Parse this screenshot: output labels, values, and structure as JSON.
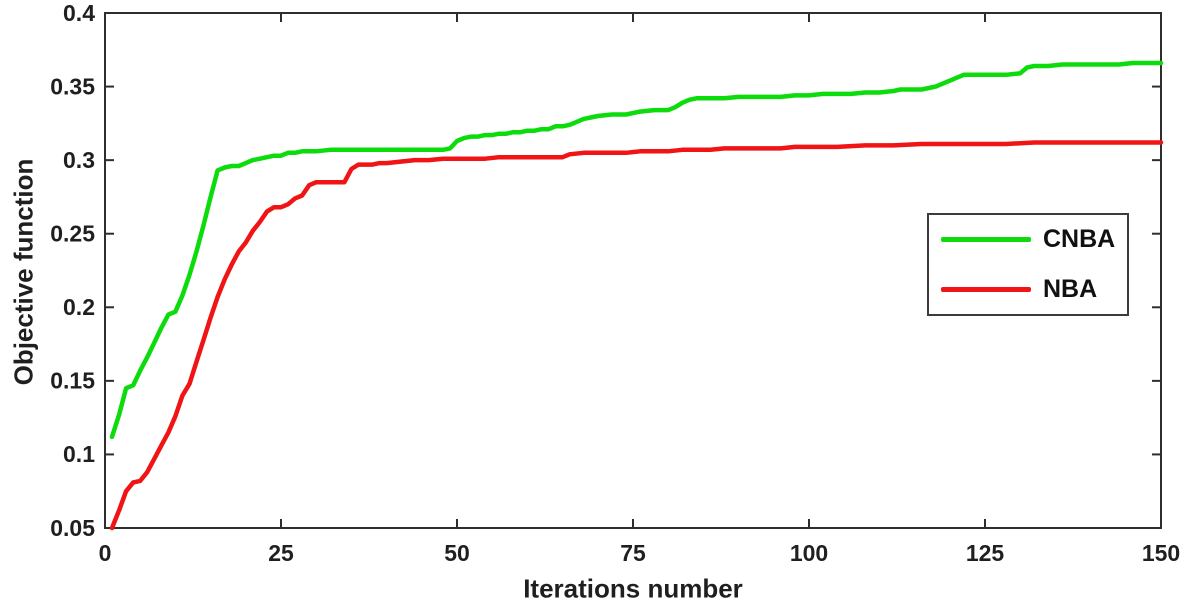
{
  "figure": {
    "background": "#ffffff"
  },
  "chart_data": {
    "type": "line",
    "title": "",
    "xlabel": "Iterations number",
    "ylabel": "Objective function",
    "xlim": [
      0,
      150
    ],
    "ylim": [
      0.05,
      0.4
    ],
    "grid": false,
    "axis_color": "#2e2e2e",
    "text_color": "#1f1f1f",
    "legend": {
      "position": "right-middle",
      "border": true
    },
    "xticks": {
      "values": [
        0,
        25,
        50,
        75,
        100,
        125,
        150
      ],
      "labels": [
        "0",
        "25",
        "50",
        "75",
        "100",
        "125",
        "150"
      ]
    },
    "yticks": {
      "values": [
        0.05,
        0.1,
        0.15,
        0.2,
        0.25,
        0.3,
        0.35,
        0.4
      ],
      "labels": [
        "0.05",
        "0.1",
        "0.15",
        "0.2",
        "0.25",
        "0.3",
        "0.35",
        "0.4"
      ]
    },
    "series": [
      {
        "name": "CNBA",
        "color": "#0cdc0c",
        "line_width": 4.5,
        "x": [
          1,
          2,
          3,
          4,
          5,
          6,
          7,
          8,
          9,
          10,
          11,
          12,
          13,
          14,
          15,
          16,
          17,
          18,
          19,
          20,
          21,
          22,
          23,
          24,
          25,
          26,
          27,
          28,
          30,
          32,
          34,
          36,
          38,
          40,
          42,
          44,
          46,
          48,
          49,
          50,
          51,
          52,
          53,
          54,
          55,
          56,
          57,
          58,
          59,
          60,
          61,
          62,
          63,
          64,
          65,
          66,
          67,
          68,
          69,
          70,
          72,
          74,
          75,
          76,
          78,
          80,
          81,
          82,
          83,
          84,
          86,
          88,
          90,
          92,
          94,
          96,
          98,
          100,
          102,
          104,
          106,
          108,
          110,
          112,
          113,
          114,
          116,
          117,
          118,
          119,
          120,
          121,
          122,
          124,
          126,
          128,
          130,
          131,
          132,
          134,
          136,
          138,
          140,
          142,
          144,
          146,
          148,
          150
        ],
        "y": [
          0.112,
          0.127,
          0.145,
          0.147,
          0.157,
          0.166,
          0.176,
          0.186,
          0.195,
          0.197,
          0.208,
          0.222,
          0.238,
          0.256,
          0.275,
          0.293,
          0.295,
          0.296,
          0.296,
          0.298,
          0.3,
          0.301,
          0.302,
          0.303,
          0.303,
          0.305,
          0.305,
          0.306,
          0.306,
          0.307,
          0.307,
          0.307,
          0.307,
          0.307,
          0.307,
          0.307,
          0.307,
          0.307,
          0.308,
          0.313,
          0.315,
          0.316,
          0.316,
          0.317,
          0.317,
          0.318,
          0.318,
          0.319,
          0.319,
          0.32,
          0.32,
          0.321,
          0.321,
          0.323,
          0.323,
          0.324,
          0.326,
          0.328,
          0.329,
          0.33,
          0.331,
          0.331,
          0.332,
          0.333,
          0.334,
          0.334,
          0.336,
          0.339,
          0.341,
          0.342,
          0.342,
          0.342,
          0.343,
          0.343,
          0.343,
          0.343,
          0.344,
          0.344,
          0.345,
          0.345,
          0.345,
          0.346,
          0.346,
          0.347,
          0.348,
          0.348,
          0.348,
          0.349,
          0.35,
          0.352,
          0.354,
          0.356,
          0.358,
          0.358,
          0.358,
          0.358,
          0.359,
          0.363,
          0.364,
          0.364,
          0.365,
          0.365,
          0.365,
          0.365,
          0.365,
          0.366,
          0.366,
          0.366
        ]
      },
      {
        "name": "NBA",
        "color": "#f01414",
        "line_width": 4.5,
        "x": [
          1,
          2,
          3,
          4,
          5,
          6,
          7,
          8,
          9,
          10,
          11,
          12,
          13,
          14,
          15,
          16,
          17,
          18,
          19,
          20,
          21,
          22,
          23,
          24,
          25,
          26,
          27,
          28,
          29,
          30,
          31,
          32,
          33,
          34,
          35,
          36,
          37,
          38,
          39,
          40,
          42,
          44,
          46,
          48,
          50,
          52,
          54,
          56,
          58,
          60,
          62,
          64,
          65,
          66,
          68,
          70,
          72,
          74,
          76,
          78,
          80,
          82,
          84,
          86,
          88,
          90,
          92,
          94,
          96,
          98,
          100,
          104,
          108,
          112,
          116,
          120,
          124,
          128,
          132,
          136,
          140,
          144,
          148,
          150
        ],
        "y": [
          0.05,
          0.062,
          0.075,
          0.081,
          0.082,
          0.088,
          0.097,
          0.106,
          0.115,
          0.126,
          0.14,
          0.148,
          0.163,
          0.178,
          0.193,
          0.207,
          0.219,
          0.229,
          0.238,
          0.244,
          0.252,
          0.258,
          0.265,
          0.268,
          0.268,
          0.27,
          0.274,
          0.276,
          0.283,
          0.285,
          0.285,
          0.285,
          0.285,
          0.285,
          0.294,
          0.297,
          0.297,
          0.297,
          0.298,
          0.298,
          0.299,
          0.3,
          0.3,
          0.301,
          0.301,
          0.301,
          0.301,
          0.302,
          0.302,
          0.302,
          0.302,
          0.302,
          0.302,
          0.304,
          0.305,
          0.305,
          0.305,
          0.305,
          0.306,
          0.306,
          0.306,
          0.307,
          0.307,
          0.307,
          0.308,
          0.308,
          0.308,
          0.308,
          0.308,
          0.309,
          0.309,
          0.309,
          0.31,
          0.31,
          0.311,
          0.311,
          0.311,
          0.311,
          0.312,
          0.312,
          0.312,
          0.312,
          0.312,
          0.312
        ]
      }
    ]
  }
}
